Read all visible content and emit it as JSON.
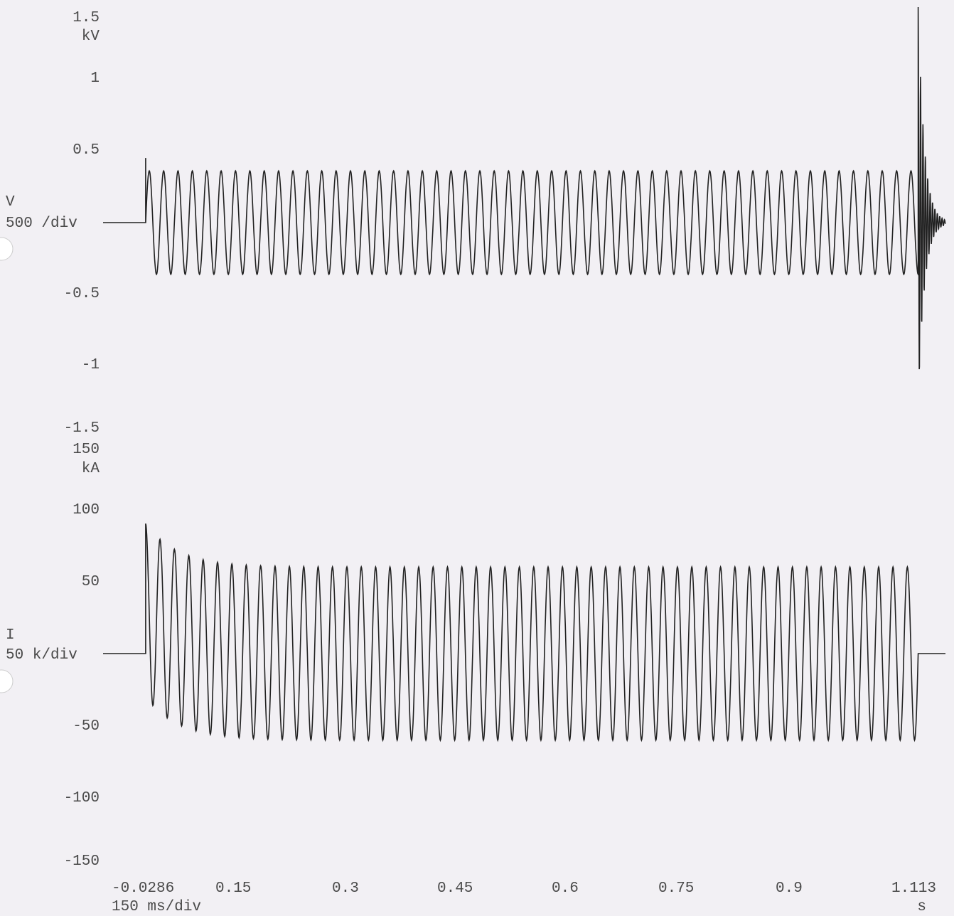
{
  "chart_data": [
    {
      "type": "line",
      "series": [
        {
          "name": "V"
        }
      ],
      "y_unit": "kV",
      "y_scale_label": "500 /div",
      "y_top_label": "1.5",
      "y_ticks": [
        "1",
        "0.5",
        "-0.5",
        "-1",
        "-1.5"
      ],
      "ylim": [
        -1.5,
        1.5
      ],
      "signal": {
        "start": -0.0286,
        "end": 1.113,
        "trip_time": 1.075,
        "frequency_hz": 50,
        "amplitude": 0.36,
        "onset_spike": 0.45,
        "recovery_peak": 1.5,
        "recovery_trough": -1.28
      }
    },
    {
      "type": "line",
      "series": [
        {
          "name": "I"
        }
      ],
      "y_unit": "kA",
      "y_scale_label": "50 k/div",
      "y_top_label": "150",
      "y_ticks": [
        "100",
        "50",
        "-50",
        "-100",
        "-150"
      ],
      "ylim": [
        -150,
        150
      ],
      "signal": {
        "start": -0.0286,
        "end": 1.113,
        "trip_time": 1.075,
        "frequency_hz": 50,
        "amplitude": 60,
        "first_peak": 90,
        "first_trough": -45
      }
    }
  ],
  "x_axis": {
    "ticks": [
      "-0.0286",
      "0.15",
      "0.3",
      "0.45",
      "0.6",
      "0.75",
      "0.9",
      "1.113"
    ],
    "unit": "s",
    "scale_label": "150 ms/div",
    "xlim": [
      -0.0286,
      1.113
    ]
  }
}
